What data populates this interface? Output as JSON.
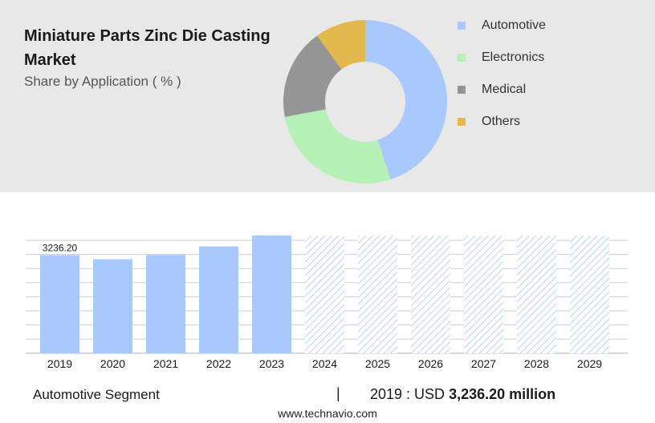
{
  "title": "Miniature Parts Zinc Die Casting Market",
  "subtitle": "Share by Application ( % )",
  "colors": {
    "background_top": "#e8e8e8",
    "bar": "#a9c8fc",
    "grid": "#cfcfcf",
    "forecast_hatch": "#a9c8fc"
  },
  "chart_data": [
    {
      "type": "pie",
      "style": "donut",
      "categories": [
        "Automotive",
        "Electronics",
        "Medical",
        "Others"
      ],
      "values": [
        45,
        27,
        18,
        10
      ],
      "colors": [
        "#a9c8fc",
        "#b6f2b8",
        "#959595",
        "#e3b94e"
      ],
      "legend_position": "right"
    },
    {
      "type": "bar",
      "categories": [
        "2019",
        "2020",
        "2021",
        "2022",
        "2023",
        "2024",
        "2025",
        "2026",
        "2027",
        "2028",
        "2029"
      ],
      "values": [
        3236.2,
        3100,
        3240,
        3520,
        3880,
        null,
        null,
        null,
        null,
        null,
        null
      ],
      "forecast_categories": [
        "2024",
        "2025",
        "2026",
        "2027",
        "2028",
        "2029"
      ],
      "data_labels": [
        "3236.20",
        "",
        "",
        "",
        "",
        "",
        "",
        "",
        "",
        "",
        ""
      ],
      "grid": true
    }
  ],
  "footer": {
    "segment": "Automotive Segment",
    "separator": "|",
    "year_label": "2019 : USD",
    "value": "3,236.20 million"
  },
  "source": "www.technavio.com"
}
